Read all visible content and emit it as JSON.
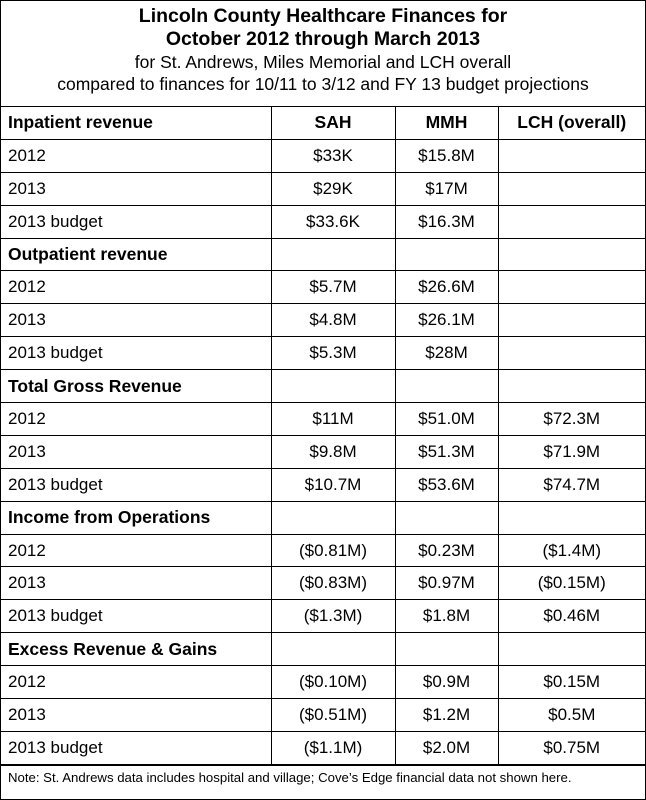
{
  "title": {
    "line1": "Lincoln County Healthcare Finances for",
    "line2": "October 2012 through March 2013",
    "line3": "for St. Andrews, Miles Memorial and LCH overall",
    "line4": "compared to finances for 10/11 to 3/12 and FY 13 budget projections"
  },
  "columns": [
    "SAH",
    "MMH",
    "LCH (overall)"
  ],
  "sections": [
    {
      "heading": "Inpatient revenue",
      "rows": [
        {
          "label": "2012",
          "values": [
            "$33K",
            "$15.8M",
            ""
          ]
        },
        {
          "label": "2013",
          "values": [
            "$29K",
            "$17M",
            ""
          ]
        },
        {
          "label": "2013 budget",
          "values": [
            "$33.6K",
            "$16.3M",
            ""
          ]
        }
      ]
    },
    {
      "heading": "Outpatient revenue",
      "rows": [
        {
          "label": "2012",
          "values": [
            "$5.7M",
            "$26.6M",
            ""
          ]
        },
        {
          "label": "2013",
          "values": [
            "$4.8M",
            "$26.1M",
            ""
          ]
        },
        {
          "label": "2013 budget",
          "values": [
            "$5.3M",
            "$28M",
            ""
          ]
        }
      ]
    },
    {
      "heading": "Total Gross Revenue",
      "rows": [
        {
          "label": "2012",
          "values": [
            "$11M",
            "$51.0M",
            "$72.3M"
          ]
        },
        {
          "label": "2013",
          "values": [
            "$9.8M",
            "$51.3M",
            "$71.9M"
          ]
        },
        {
          "label": "2013 budget",
          "values": [
            "$10.7M",
            "$53.6M",
            "$74.7M"
          ]
        }
      ]
    },
    {
      "heading": "Income from Operations",
      "rows": [
        {
          "label": "2012",
          "values": [
            "($0.81M)",
            "$0.23M",
            "($1.4M)"
          ]
        },
        {
          "label": "2013",
          "values": [
            "($0.83M)",
            "$0.97M",
            "($0.15M)"
          ]
        },
        {
          "label": "2013 budget",
          "values": [
            "($1.3M)",
            "$1.8M",
            "$0.46M"
          ]
        }
      ]
    },
    {
      "heading": "Excess Revenue & Gains",
      "rows": [
        {
          "label": "2012",
          "values": [
            "($0.10M)",
            "$0.9M",
            "$0.15M"
          ]
        },
        {
          "label": "2013",
          "values": [
            "($0.51M)",
            "$1.2M",
            "$0.5M"
          ]
        },
        {
          "label": "2013 budget",
          "values": [
            "($1.1M)",
            "$2.0M",
            "$0.75M"
          ]
        }
      ]
    }
  ],
  "note": "Note: St. Andrews data includes hospital and village; Cove’s Edge financial data not shown here."
}
